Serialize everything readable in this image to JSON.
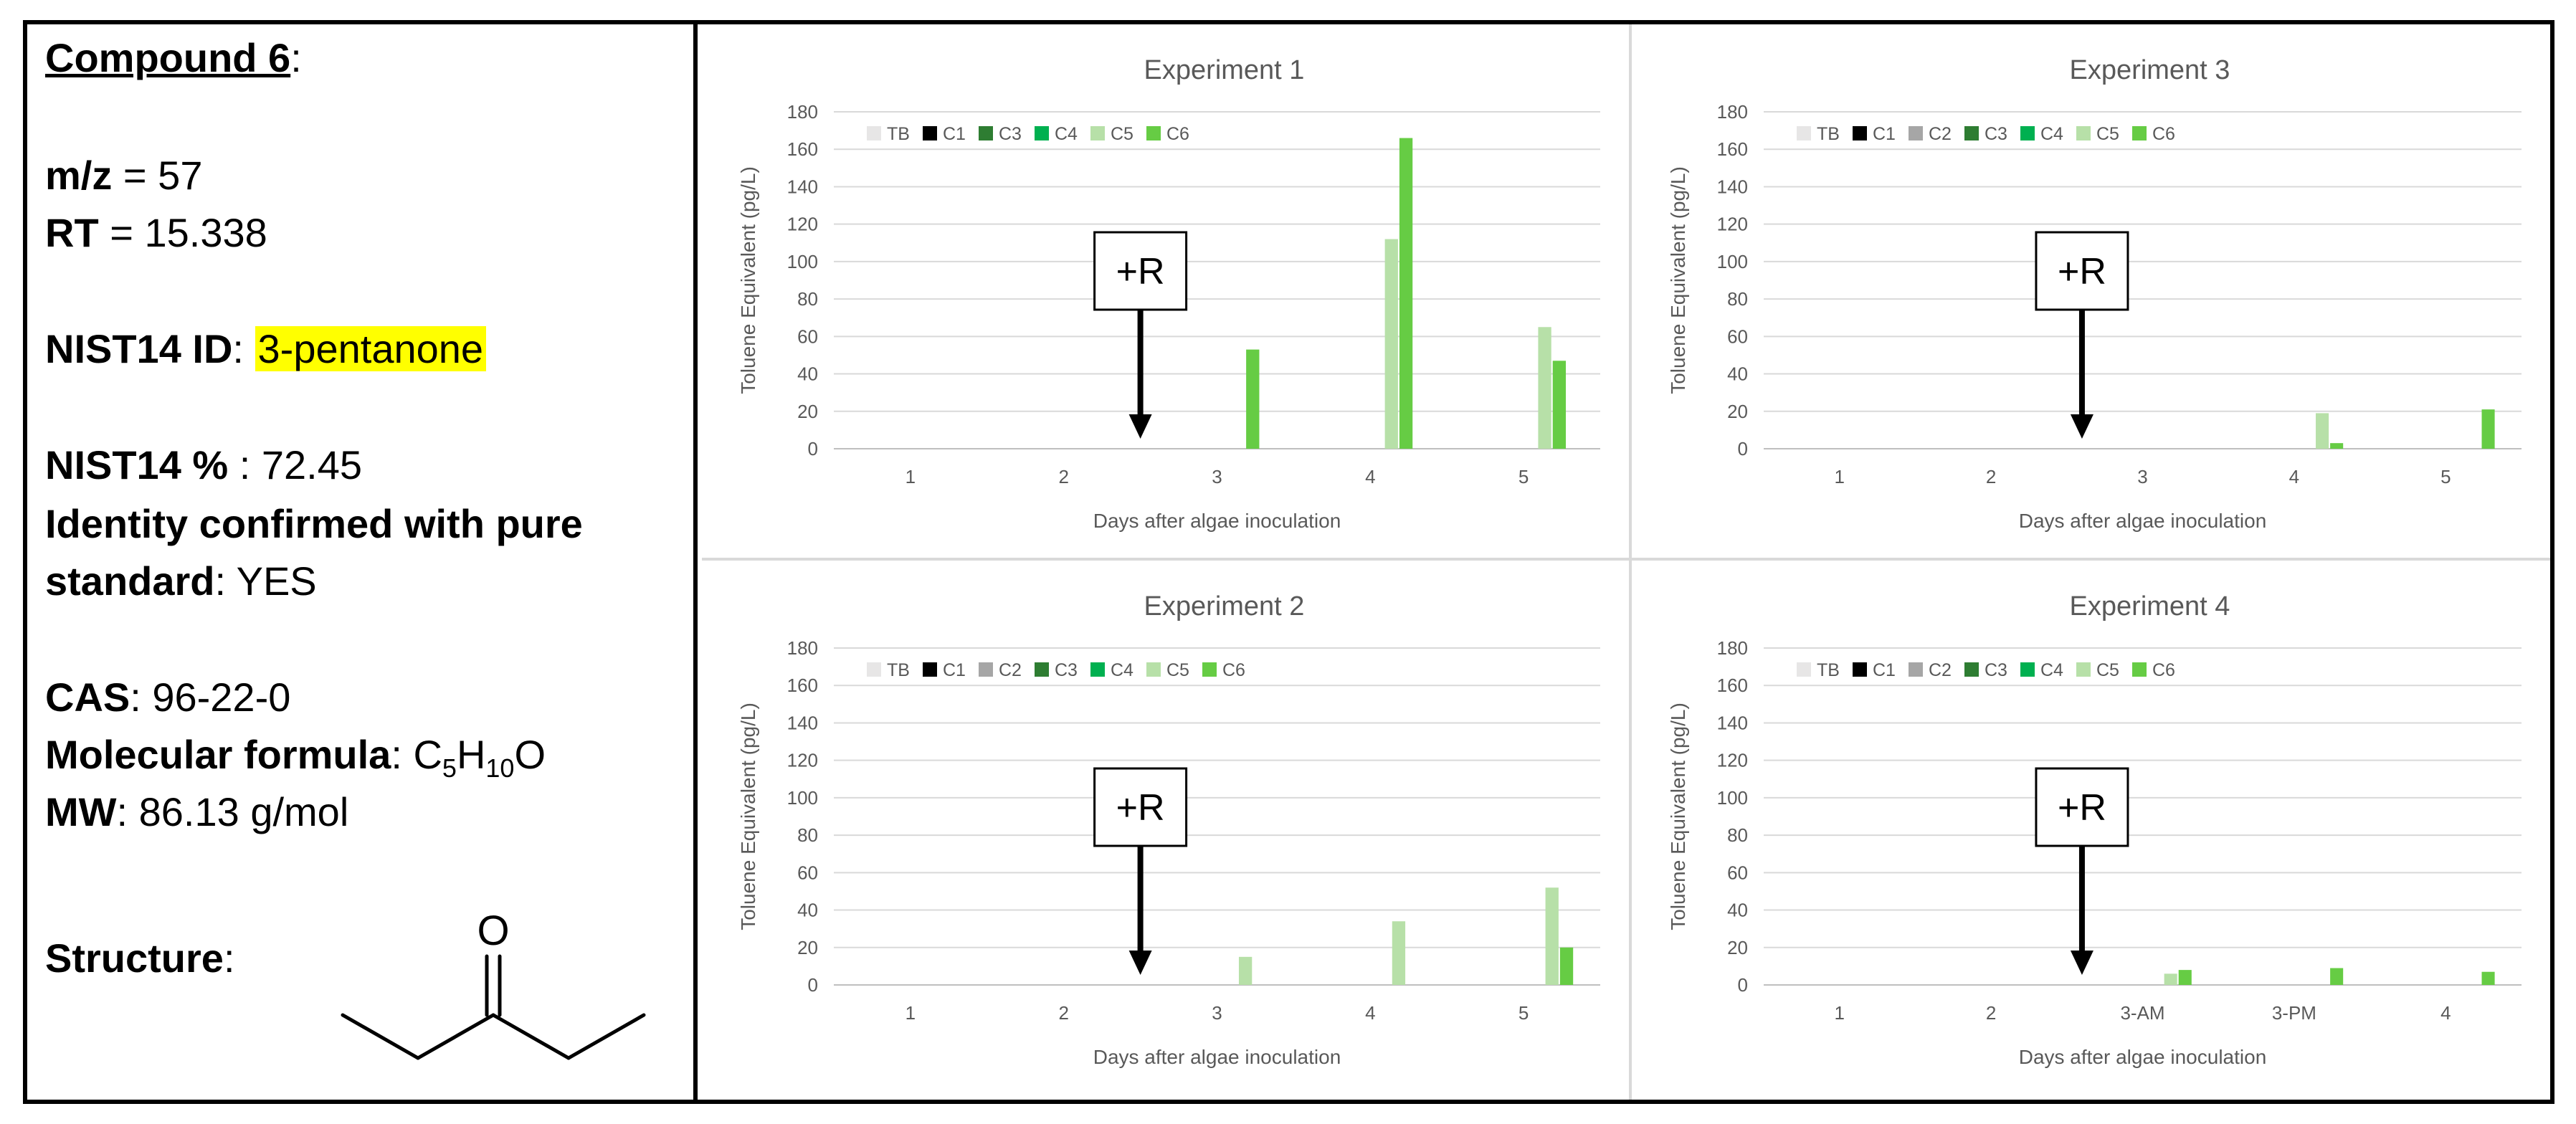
{
  "compound": {
    "title": "Compound 6",
    "title_suffix": ":",
    "mz_label": "m/z",
    "mz_value": " = 57",
    "rt_label": "RT",
    "rt_value": " = 15.338",
    "nist_id_label": "NIST14 ID",
    "nist_id_sep": ": ",
    "nist_id_value": "3-pentanone",
    "nist_pct_label": "NIST14 %",
    "nist_pct_value": " : 72.45",
    "identity_label_1": "Identity confirmed with pure",
    "identity_label_2": "standard",
    "identity_value": ": YES",
    "cas_label": "CAS",
    "cas_value": ": 96-22-0",
    "formula_label": "Molecular formula",
    "formula_sep": ":  ",
    "formula_c": "C",
    "formula_c_sub": "5",
    "formula_h": "H",
    "formula_h_sub": "10",
    "formula_o": "O",
    "mw_label": "MW",
    "mw_value": ": 86.13 g/mol",
    "structure_label": "Structure",
    "structure_sep": ":",
    "structure_atom": "O",
    "highlight_color": "#ffff00"
  },
  "chart_data": [
    {
      "type": "bar",
      "title": "Experiment 1",
      "xlabel": "Days after algae inoculation",
      "ylabel": "Toluene Equivalent (pg/L)",
      "ylim": [
        0,
        180
      ],
      "yticks": [
        0,
        20,
        40,
        60,
        80,
        100,
        120,
        140,
        160,
        180
      ],
      "grid": true,
      "legend_position": "top-left",
      "annotation": "+R",
      "annotation_at_x": 2.5,
      "categories": [
        "1",
        "2",
        "3",
        "4",
        "5"
      ],
      "series": [
        {
          "name": "TB",
          "color": "#e7e6e6",
          "values": [
            0,
            0,
            0,
            0,
            0
          ]
        },
        {
          "name": "C1",
          "color": "#000000",
          "values": [
            0,
            0,
            0,
            0,
            0
          ]
        },
        {
          "name": "C3",
          "color": "#2e7d32",
          "values": [
            0,
            0,
            0,
            0,
            0
          ]
        },
        {
          "name": "C4",
          "color": "#00b050",
          "values": [
            0,
            0,
            0,
            0,
            0
          ]
        },
        {
          "name": "C5",
          "color": "#b7e0a8",
          "values": [
            0,
            0,
            0,
            112,
            65
          ]
        },
        {
          "name": "C6",
          "color": "#66cc44",
          "values": [
            0,
            0,
            53,
            166,
            47
          ]
        }
      ]
    },
    {
      "type": "bar",
      "title": "Experiment 3",
      "xlabel": "Days after algae inoculation",
      "ylabel": "Toluene Equivalent (pg/L)",
      "ylim": [
        0,
        180
      ],
      "yticks": [
        0,
        20,
        40,
        60,
        80,
        100,
        120,
        140,
        160,
        180
      ],
      "grid": true,
      "legend_position": "top-left",
      "annotation": "+R",
      "annotation_at_x": 2.6,
      "categories": [
        "1",
        "2",
        "3",
        "4",
        "5"
      ],
      "series": [
        {
          "name": "TB",
          "color": "#e7e6e6",
          "values": [
            0,
            0,
            0,
            0,
            0
          ]
        },
        {
          "name": "C1",
          "color": "#000000",
          "values": [
            0,
            0,
            0,
            0,
            0
          ]
        },
        {
          "name": "C2",
          "color": "#a6a6a6",
          "values": [
            0,
            0,
            0,
            0,
            0
          ]
        },
        {
          "name": "C3",
          "color": "#2e7d32",
          "values": [
            0,
            0,
            0,
            0,
            0
          ]
        },
        {
          "name": "C4",
          "color": "#00b050",
          "values": [
            0,
            0,
            0,
            0,
            0
          ]
        },
        {
          "name": "C5",
          "color": "#b7e0a8",
          "values": [
            0,
            0,
            0,
            19,
            0
          ]
        },
        {
          "name": "C6",
          "color": "#66cc44",
          "values": [
            0,
            0,
            0,
            3,
            21
          ]
        }
      ]
    },
    {
      "type": "bar",
      "title": "Experiment 2",
      "xlabel": "Days after algae inoculation",
      "ylabel": "Toluene Equivalent (pg/L)",
      "ylim": [
        0,
        180
      ],
      "yticks": [
        0,
        20,
        40,
        60,
        80,
        100,
        120,
        140,
        160,
        180
      ],
      "grid": true,
      "legend_position": "top-left",
      "annotation": "+R",
      "annotation_at_x": 2.5,
      "categories": [
        "1",
        "2",
        "3",
        "4",
        "5"
      ],
      "series": [
        {
          "name": "TB",
          "color": "#e7e6e6",
          "values": [
            0,
            0,
            0,
            0,
            0
          ]
        },
        {
          "name": "C1",
          "color": "#000000",
          "values": [
            0,
            0,
            0,
            0,
            0
          ]
        },
        {
          "name": "C2",
          "color": "#a6a6a6",
          "values": [
            0,
            0,
            0,
            0,
            0
          ]
        },
        {
          "name": "C3",
          "color": "#2e7d32",
          "values": [
            0,
            0,
            0,
            0,
            0
          ]
        },
        {
          "name": "C4",
          "color": "#00b050",
          "values": [
            0,
            0,
            0,
            0,
            0
          ]
        },
        {
          "name": "C5",
          "color": "#b7e0a8",
          "values": [
            0,
            0,
            15,
            34,
            52
          ]
        },
        {
          "name": "C6",
          "color": "#66cc44",
          "values": [
            0,
            0,
            0,
            0,
            20
          ]
        }
      ]
    },
    {
      "type": "bar",
      "title": "Experiment 4",
      "xlabel": "Days after algae inoculation",
      "ylabel": "Toluene Equivalent (pg/L)",
      "ylim": [
        0,
        180
      ],
      "yticks": [
        0,
        20,
        40,
        60,
        80,
        100,
        120,
        140,
        160,
        180
      ],
      "grid": true,
      "legend_position": "top-left",
      "annotation": "+R",
      "annotation_at_x": 2.6,
      "categories": [
        "1",
        "2",
        "3-AM",
        "3-PM",
        "4"
      ],
      "series": [
        {
          "name": "TB",
          "color": "#e7e6e6",
          "values": [
            0,
            0,
            0,
            0,
            0
          ]
        },
        {
          "name": "C1",
          "color": "#000000",
          "values": [
            0,
            0,
            0,
            0,
            0
          ]
        },
        {
          "name": "C2",
          "color": "#a6a6a6",
          "values": [
            0,
            0,
            0,
            0,
            0
          ]
        },
        {
          "name": "C3",
          "color": "#2e7d32",
          "values": [
            0,
            0,
            0,
            0,
            0
          ]
        },
        {
          "name": "C4",
          "color": "#00b050",
          "values": [
            0,
            0,
            0,
            0,
            0
          ]
        },
        {
          "name": "C5",
          "color": "#b7e0a8",
          "values": [
            0,
            0,
            6,
            0,
            0
          ]
        },
        {
          "name": "C6",
          "color": "#66cc44",
          "values": [
            0,
            0,
            8,
            9,
            7
          ]
        }
      ]
    }
  ]
}
